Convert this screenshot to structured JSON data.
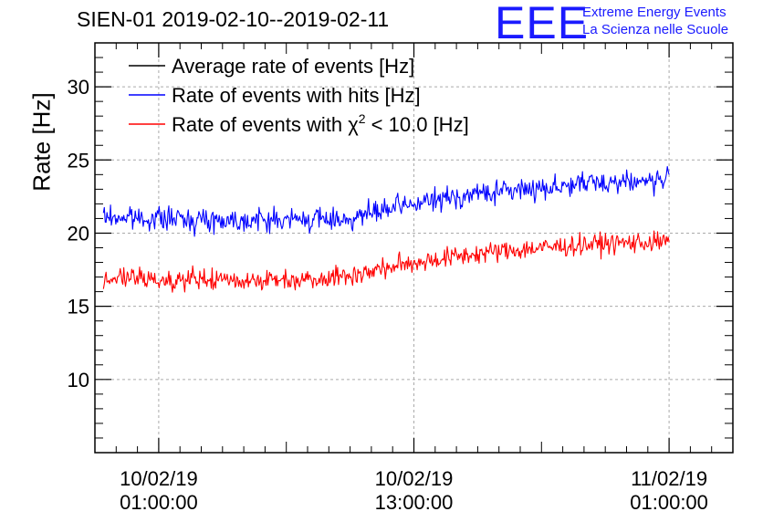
{
  "header": {
    "title": "SIEN-01 2019-02-10--2019-02-11",
    "logo": "EEE",
    "logo_line1": "Extreme Energy Events",
    "logo_line2": "La Scienza nelle Scuole"
  },
  "colors": {
    "average": "#000000",
    "hits": "#0000ff",
    "chi2": "#ff0000",
    "grid": "#aaaaaa"
  },
  "chart_data": {
    "type": "line",
    "title": "SIEN-01 2019-02-10--2019-02-11",
    "ylabel": "Rate [Hz]",
    "xlabel": "",
    "ylim": [
      5,
      33
    ],
    "x_range_hours": [
      -3,
      27
    ],
    "data_x_range_hours": [
      -2.6,
      24
    ],
    "yticks": [
      "10",
      "15",
      "20",
      "25",
      "30"
    ],
    "xticks": [
      {
        "hour": 0,
        "line1": "10/02/19",
        "line2": "01:00:00"
      },
      {
        "hour": 12,
        "line1": "10/02/19",
        "line2": "13:00:00"
      },
      {
        "hour": 24,
        "line1": "11/02/19",
        "line2": "01:00:00"
      }
    ],
    "legend": {
      "placement": "top-left",
      "entries": [
        {
          "key": "average",
          "label": "Average rate of events [Hz]"
        },
        {
          "key": "hits",
          "label": "Rate of events with hits [Hz]"
        },
        {
          "key": "chi2",
          "label_pre": "Rate of events with χ",
          "label_sup": "2",
          "label_post": " < 10.0 [Hz]"
        }
      ]
    },
    "series": [
      {
        "name": "Rate of events with hits [Hz]",
        "key": "hits",
        "trend_hours": [
          -2.6,
          0,
          3,
          6,
          9,
          12,
          15,
          18,
          21,
          24
        ],
        "trend_values": [
          21.1,
          21.0,
          20.9,
          20.9,
          21.0,
          22.0,
          22.7,
          23.1,
          23.5,
          23.6
        ],
        "noise": 0.55
      },
      {
        "name": "Rate of events with χ2 < 10.0 [Hz]",
        "key": "chi2",
        "trend_hours": [
          -2.6,
          0,
          3,
          6,
          9,
          12,
          15,
          18,
          21,
          24
        ],
        "trend_values": [
          17.0,
          16.8,
          16.8,
          16.8,
          17.1,
          18.0,
          18.6,
          19.0,
          19.3,
          19.4
        ],
        "noise": 0.5
      }
    ]
  }
}
